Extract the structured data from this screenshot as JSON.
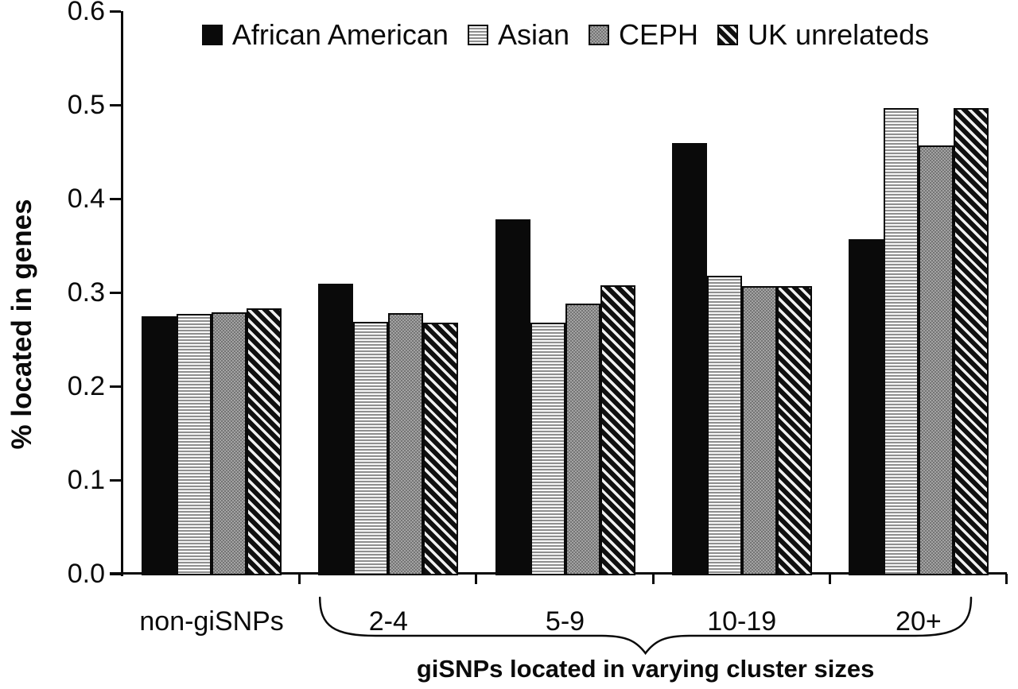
{
  "chart_data": {
    "type": "bar",
    "title": "",
    "xlabel": "",
    "ylabel": "% located in genes",
    "ylim": [
      0,
      0.6
    ],
    "ytick_step": 0.1,
    "ytick_labels": [
      "0.0",
      "0.1",
      "0.2",
      "0.3",
      "0.4",
      "0.5",
      "0.6"
    ],
    "grid": false,
    "legend_position": "top-center",
    "categories": [
      "non-giSNPs",
      "2-4",
      "5-9",
      "10-19",
      "20+"
    ],
    "series": [
      {
        "name": "African American",
        "pattern": "solid",
        "color": "#0a0a0a",
        "values": [
          0.275,
          0.309,
          0.378,
          0.459,
          0.357
        ]
      },
      {
        "name": "Asian",
        "pattern": "hlines",
        "color": "#f7f7f7",
        "values": [
          0.277,
          0.269,
          0.268,
          0.318,
          0.497
        ]
      },
      {
        "name": "CEPH",
        "pattern": "checker",
        "color": "#8f8f8f",
        "values": [
          0.279,
          0.278,
          0.288,
          0.307,
          0.457
        ]
      },
      {
        "name": "UK unrelateds",
        "pattern": "diag",
        "color": "#1a1a1a",
        "values": [
          0.283,
          0.268,
          0.308,
          0.307,
          0.497
        ]
      }
    ],
    "annotation": {
      "brace_over_categories": [
        "2-4",
        "5-9",
        "10-19",
        "20+"
      ],
      "label": "giSNPs located in varying cluster sizes"
    },
    "axis_color": "#0a0a0a"
  }
}
